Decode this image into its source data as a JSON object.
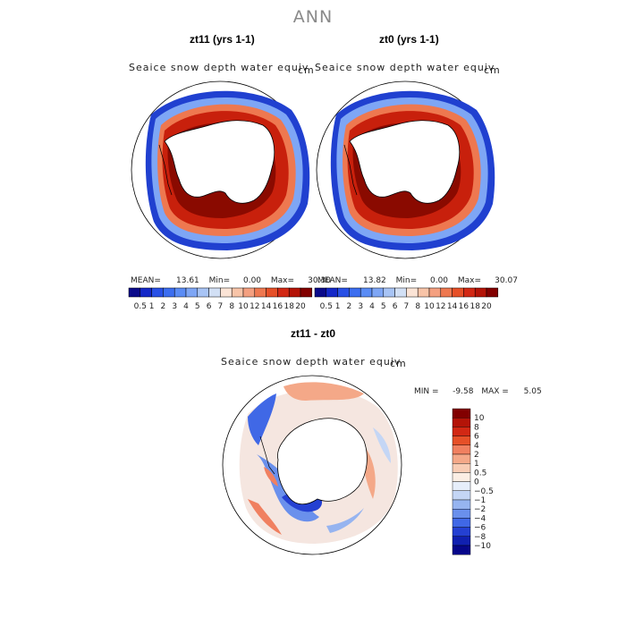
{
  "main_title": "ANN",
  "panels": [
    {
      "title": "zt11 (yrs 1-1)",
      "variable": "Seaice snow depth water equiv",
      "units": "cm",
      "stats": {
        "mean_label": "MEAN=",
        "mean": "13.61",
        "min_label": "Min=",
        "min": "0.00",
        "max_label": "Max=",
        "max": "30.30"
      }
    },
    {
      "title": "zt0 (yrs 1-1)",
      "variable": "Seaice snow depth water equiv",
      "units": "cm",
      "stats": {
        "mean_label": "MEAN=",
        "mean": "13.82",
        "min_label": "Min=",
        "min": "0.00",
        "max_label": "Max=",
        "max": "30.07"
      }
    }
  ],
  "colorbar_top": {
    "labels": [
      "0.5",
      "1",
      "2",
      "3",
      "4",
      "5",
      "6",
      "7",
      "8",
      "10",
      "12",
      "14",
      "16",
      "18",
      "20"
    ],
    "colors": [
      "#0a0a8a",
      "#1428c8",
      "#2850e6",
      "#3c6ef0",
      "#5a8cf5",
      "#7ea6f5",
      "#a8c4f5",
      "#d2e0f5",
      "#fbe4d6",
      "#f8c4a8",
      "#f4a080",
      "#ee7850",
      "#e65028",
      "#d22814",
      "#b41408",
      "#820000"
    ]
  },
  "diff_panel": {
    "title": "zt11 - zt0",
    "variable": "Seaice snow depth water equiv",
    "units": "cm",
    "stats": {
      "min_label": "MIN =",
      "min": "-9.58",
      "max_label": "MAX =",
      "max": "5.05"
    }
  },
  "colorbar_diff": {
    "labels": [
      "10",
      "8",
      "6",
      "4",
      "2",
      "1",
      "0.5",
      "0",
      "−0.5",
      "−1",
      "−2",
      "−4",
      "−6",
      "−8",
      "−10"
    ],
    "colors": [
      "#820000",
      "#b41408",
      "#d22814",
      "#e65028",
      "#f08060",
      "#f4a888",
      "#f8ccb4",
      "#fbeee4",
      "#e6eefa",
      "#c4d6f5",
      "#96b4f0",
      "#6a90ec",
      "#4068e6",
      "#2440d2",
      "#1020b0",
      "#06068a"
    ]
  }
}
